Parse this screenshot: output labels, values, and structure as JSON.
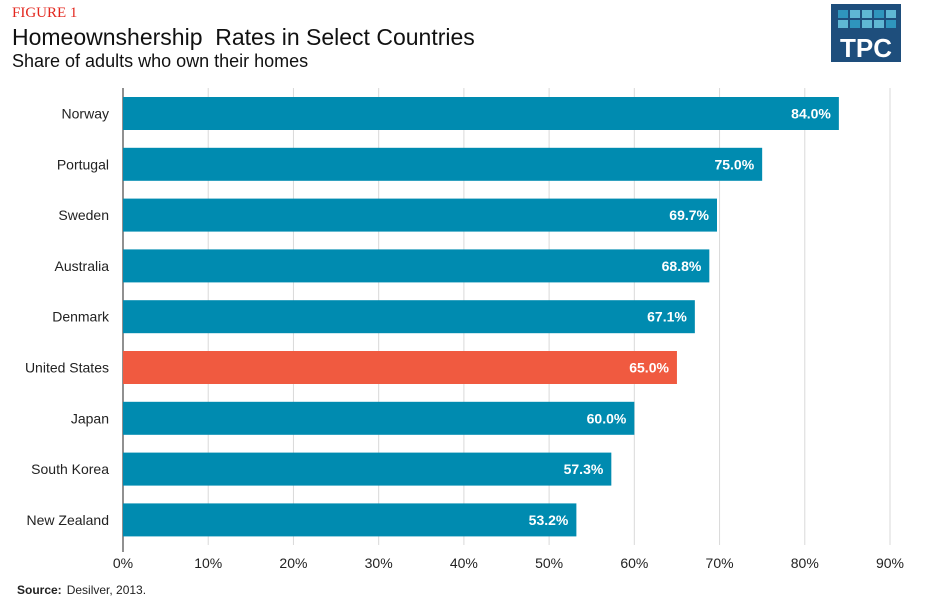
{
  "header": {
    "figure_label": "FIGURE 1",
    "title": "Homeownshership  Rates in Select Countries",
    "subtitle": "Share of adults who own their homes"
  },
  "logo": {
    "text": "TPC"
  },
  "source": {
    "label": "Source:",
    "text": "Desilver, 2013."
  },
  "colors": {
    "bar": "#008bb0",
    "highlight": "#f05a40",
    "grid": "#d9d9d9"
  },
  "chart_data": {
    "type": "bar",
    "orientation": "horizontal",
    "title": "Homeownshership  Rates in Select Countries",
    "subtitle": "Share of adults who own their homes",
    "categories": [
      "Norway",
      "Portugal",
      "Sweden",
      "Australia",
      "Denmark",
      "United States",
      "Japan",
      "South Korea",
      "New Zealand"
    ],
    "values": [
      84.0,
      75.0,
      69.7,
      68.8,
      67.1,
      65.0,
      60.0,
      57.3,
      53.2
    ],
    "data_labels": [
      "84.0%",
      "75.0%",
      "69.7%",
      "68.8%",
      "67.1%",
      "65.0%",
      "60.0%",
      "57.3%",
      "53.2%"
    ],
    "highlight": "United States",
    "xlim": [
      0,
      90
    ],
    "xticks": [
      0,
      10,
      20,
      30,
      40,
      50,
      60,
      70,
      80,
      90
    ],
    "xtick_labels": [
      "0%",
      "10%",
      "20%",
      "30%",
      "40%",
      "50%",
      "60%",
      "70%",
      "80%",
      "90%"
    ],
    "grid": true,
    "xlabel": "",
    "ylabel": ""
  }
}
